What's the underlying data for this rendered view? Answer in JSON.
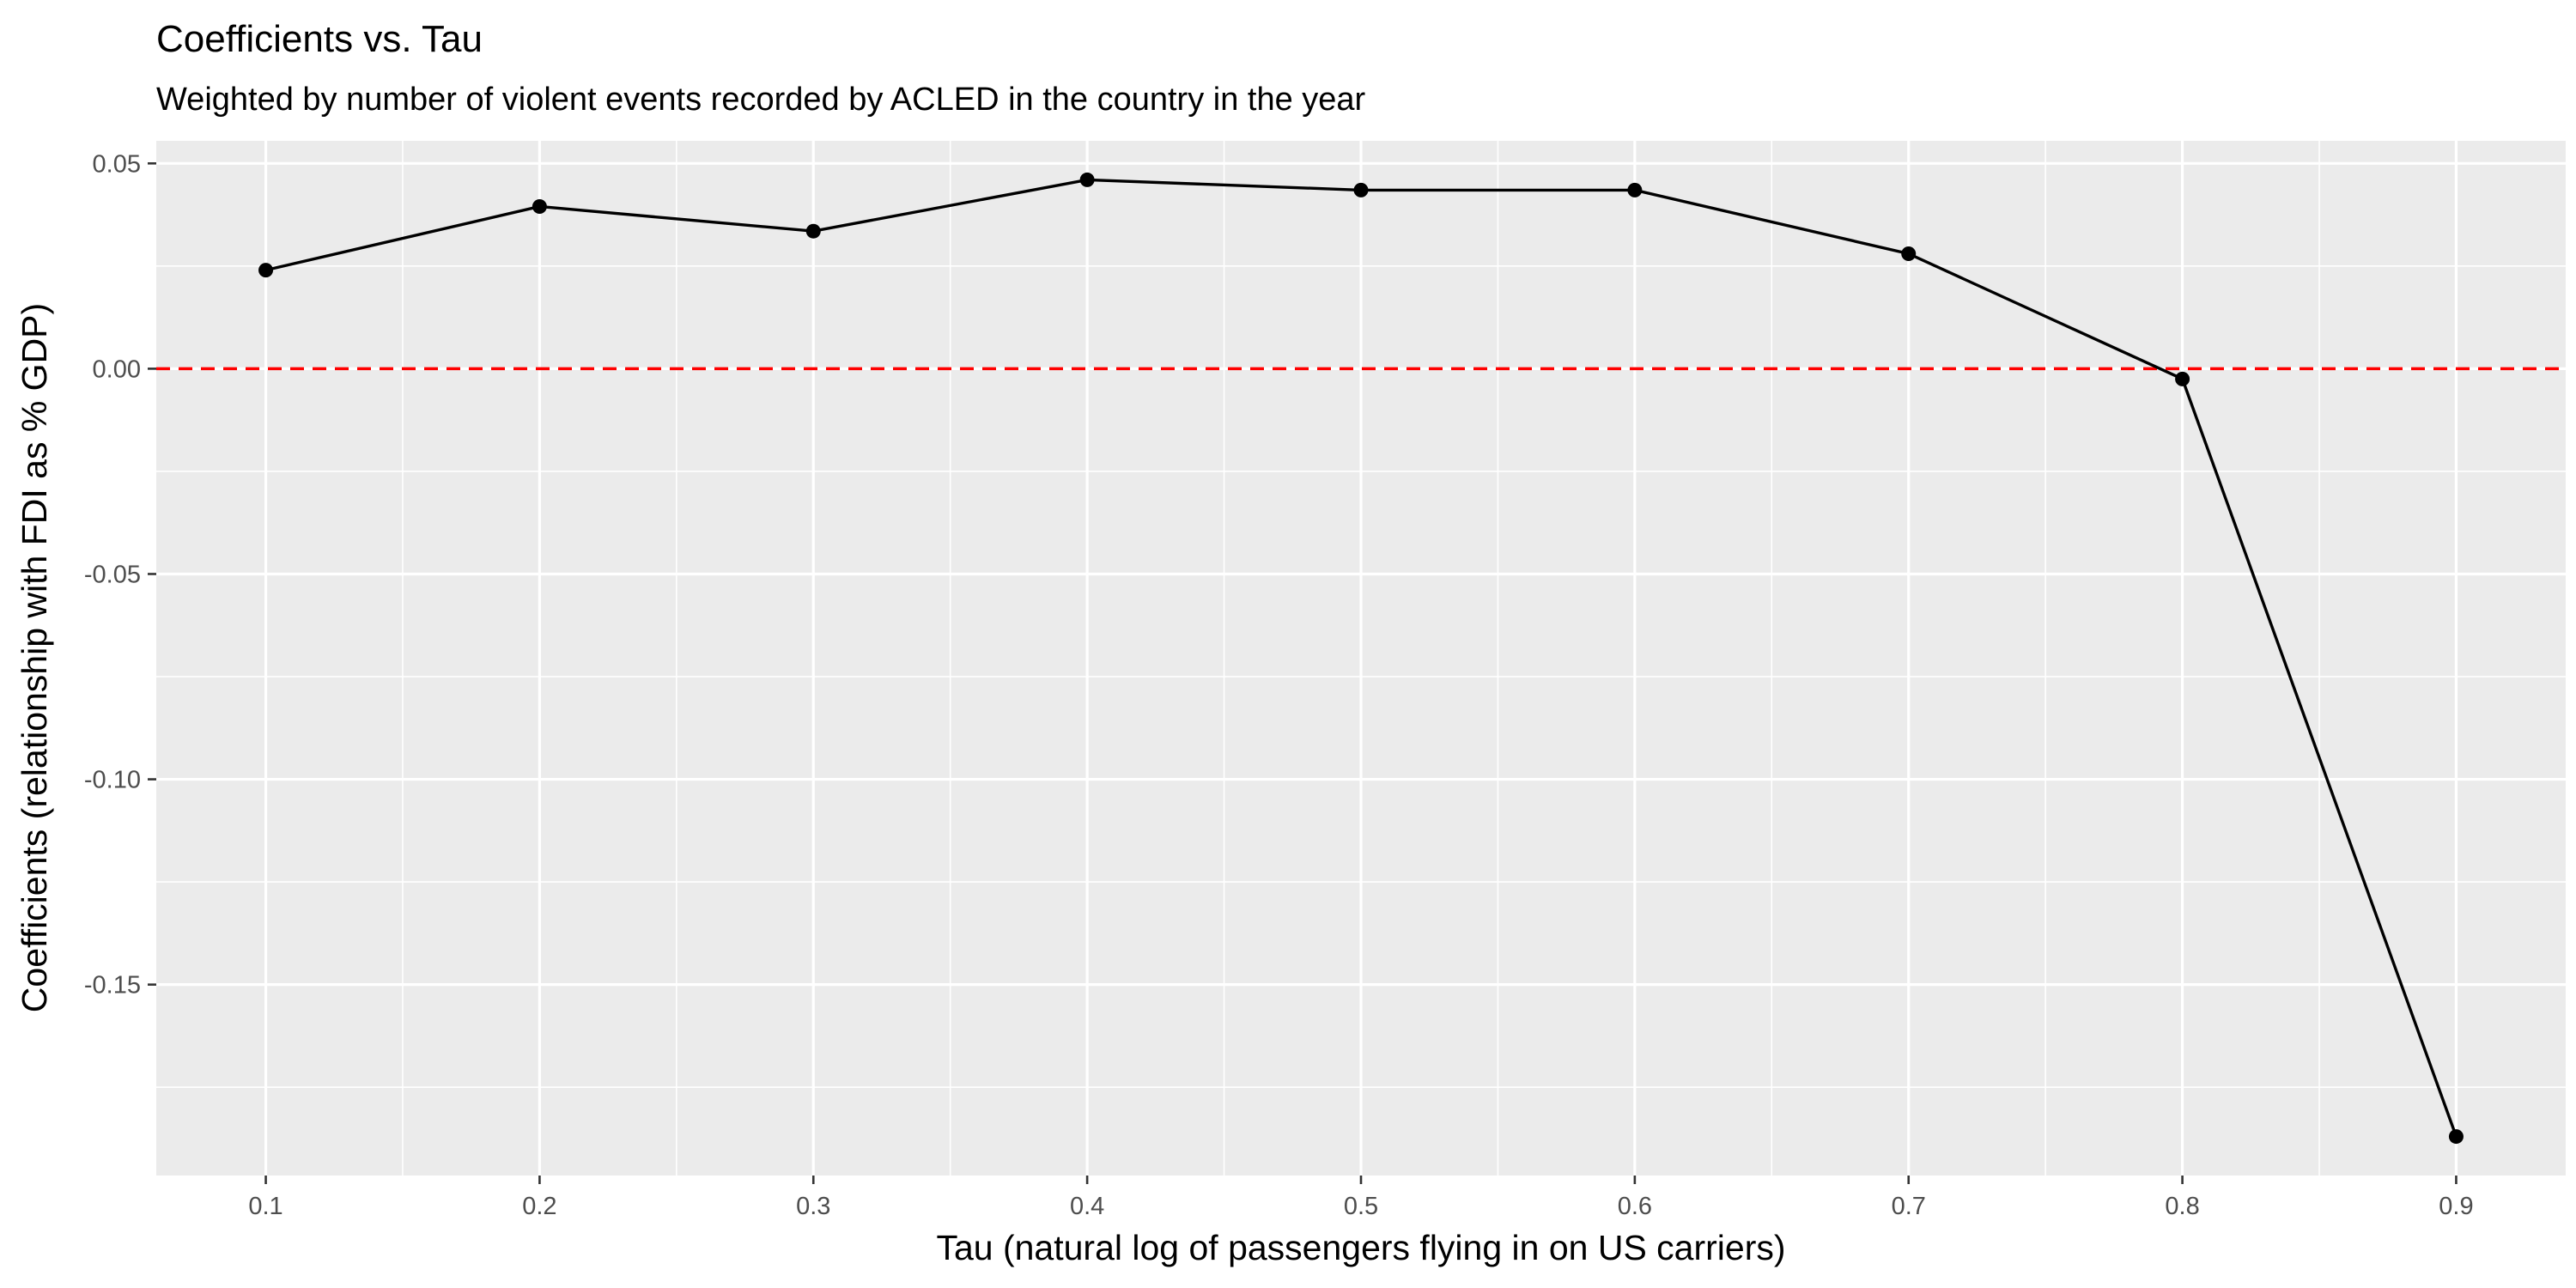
{
  "chart_data": {
    "type": "line",
    "title": "Coefficients vs. Tau",
    "subtitle": "Weighted by number of violent events recorded by ACLED in the country in the year",
    "xlabel": "Tau (natural log of passengers flying in on US carriers)",
    "ylabel": "Coefficients (relationship with FDI as % GDP)",
    "x": [
      0.1,
      0.2,
      0.3,
      0.4,
      0.5,
      0.6,
      0.7,
      0.8,
      0.9
    ],
    "series": [
      {
        "values": [
          0.024,
          0.0395,
          0.0335,
          0.046,
          0.0435,
          0.0435,
          0.028,
          -0.0025,
          -0.187
        ],
        "color": "#000000"
      }
    ],
    "reference_line": {
      "y": 0,
      "color": "#ff0000",
      "style": "dashed"
    },
    "xticks": [
      0.1,
      0.2,
      0.3,
      0.4,
      0.5,
      0.6,
      0.7,
      0.8,
      0.9
    ],
    "xtick_labels": [
      "0.1",
      "0.2",
      "0.3",
      "0.4",
      "0.5",
      "0.6",
      "0.7",
      "0.8",
      "0.9"
    ],
    "yticks": [
      0.05,
      0.0,
      -0.05,
      -0.1,
      -0.15
    ],
    "ytick_labels": [
      "0.05",
      "0.00",
      "-0.05",
      "-0.10",
      "-0.15"
    ],
    "xlim": [
      0.06,
      0.94
    ],
    "ylim": [
      -0.1965,
      0.0555
    ],
    "grid": true,
    "legend": "none",
    "panel_background": "#ebebeb",
    "grid_color": "#ffffff"
  }
}
